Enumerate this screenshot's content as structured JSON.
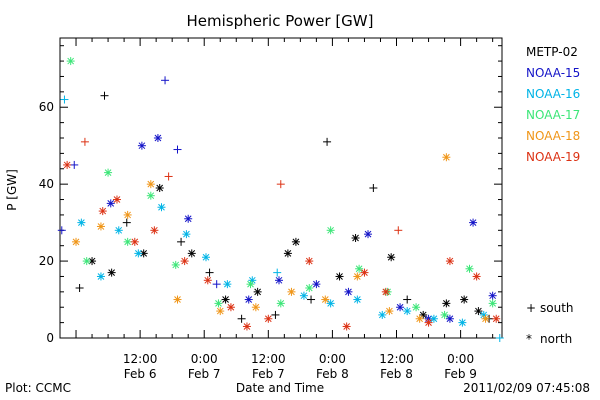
{
  "chart_data": {
    "type": "scatter",
    "title": "Hemispheric Power [GW]",
    "xlabel": "Date and Time",
    "ylabel": "P [GW]",
    "ylim": [
      0,
      78
    ],
    "xlim": [
      "2011-02-05 21:00",
      "2011-02-09 07:45"
    ],
    "y_ticks": [
      0,
      20,
      40,
      60
    ],
    "x_ticks": [
      {
        "time": "2011-02-06 12:00",
        "hour": "12:00",
        "day": "Feb 6"
      },
      {
        "time": "2011-02-07 00:00",
        "hour": "0:00",
        "day": "Feb 7"
      },
      {
        "time": "2011-02-07 12:00",
        "hour": "12:00",
        "day": "Feb 7"
      },
      {
        "time": "2011-02-08 00:00",
        "hour": "0:00",
        "day": "Feb 8"
      },
      {
        "time": "2011-02-08 12:00",
        "hour": "12:00",
        "day": "Feb 8"
      },
      {
        "time": "2011-02-09 00:00",
        "hour": "0:00",
        "day": "Feb 9"
      }
    ],
    "legend_position": "right",
    "marker_legend": {
      "south": "south",
      "north": "north"
    },
    "series": [
      {
        "name": "METP-02",
        "color": "#000000",
        "points": [
          [
            "2011-02-06 00:40",
            13,
            "+"
          ],
          [
            "2011-02-06 03:00",
            20,
            "*"
          ],
          [
            "2011-02-06 05:20",
            63,
            "+"
          ],
          [
            "2011-02-06 06:40",
            17,
            "*"
          ],
          [
            "2011-02-06 09:30",
            30,
            "+"
          ],
          [
            "2011-02-06 12:40",
            22,
            "*"
          ],
          [
            "2011-02-06 15:40",
            39,
            "*"
          ],
          [
            "2011-02-06 19:40",
            25,
            "+"
          ],
          [
            "2011-02-06 21:40",
            22,
            "*"
          ],
          [
            "2011-02-07 01:00",
            17,
            "+"
          ],
          [
            "2011-02-07 04:00",
            10,
            "*"
          ],
          [
            "2011-02-07 07:00",
            5,
            "+"
          ],
          [
            "2011-02-07 10:00",
            12,
            "*"
          ],
          [
            "2011-02-07 13:20",
            6,
            "+"
          ],
          [
            "2011-02-07 15:40",
            22,
            "*"
          ],
          [
            "2011-02-07 17:10",
            25,
            "*"
          ],
          [
            "2011-02-07 20:00",
            10,
            "+"
          ],
          [
            "2011-02-07 23:00",
            51,
            "+"
          ],
          [
            "2011-02-08 01:20",
            16,
            "*"
          ],
          [
            "2011-02-08 04:20",
            26,
            "*"
          ],
          [
            "2011-02-08 07:40",
            39,
            "+"
          ],
          [
            "2011-02-08 11:00",
            21,
            "*"
          ],
          [
            "2011-02-08 14:00",
            10,
            "+"
          ],
          [
            "2011-02-08 17:00",
            6,
            "*"
          ],
          [
            "2011-02-08 21:20",
            9,
            "*"
          ],
          [
            "2011-02-09 00:40",
            10,
            "*"
          ],
          [
            "2011-02-09 03:20",
            7,
            "*"
          ],
          [
            "2011-02-09 05:20",
            5,
            "+"
          ]
        ]
      },
      {
        "name": "NOAA-15",
        "color": "#1414c8",
        "points": [
          [
            "2011-02-05 21:20",
            28,
            "+"
          ],
          [
            "2011-02-05 23:40",
            45,
            "+"
          ],
          [
            "2011-02-06 06:30",
            35,
            "*"
          ],
          [
            "2011-02-06 12:20",
            50,
            "*"
          ],
          [
            "2011-02-06 15:20",
            52,
            "*"
          ],
          [
            "2011-02-06 16:40",
            67,
            "+"
          ],
          [
            "2011-02-06 19:00",
            49,
            "+"
          ],
          [
            "2011-02-06 21:00",
            31,
            "*"
          ],
          [
            "2011-02-07 02:20",
            14,
            "+"
          ],
          [
            "2011-02-07 08:20",
            10,
            "*"
          ],
          [
            "2011-02-07 14:00",
            15,
            "*"
          ],
          [
            "2011-02-07 21:00",
            14,
            "*"
          ],
          [
            "2011-02-08 03:00",
            12,
            "*"
          ],
          [
            "2011-02-08 06:40",
            27,
            "*"
          ],
          [
            "2011-02-08 12:40",
            8,
            "*"
          ],
          [
            "2011-02-08 18:00",
            5,
            "*"
          ],
          [
            "2011-02-08 22:00",
            5,
            "*"
          ],
          [
            "2011-02-09 02:20",
            30,
            "*"
          ],
          [
            "2011-02-09 06:00",
            11,
            "*"
          ]
        ]
      },
      {
        "name": "NOAA-16",
        "color": "#00b4e6",
        "points": [
          [
            "2011-02-05 21:50",
            62,
            "+"
          ],
          [
            "2011-02-06 01:00",
            30,
            "*"
          ],
          [
            "2011-02-06 04:40",
            16,
            "*"
          ],
          [
            "2011-02-06 08:00",
            28,
            "*"
          ],
          [
            "2011-02-06 11:40",
            22,
            "*"
          ],
          [
            "2011-02-06 16:00",
            34,
            "*"
          ],
          [
            "2011-02-06 20:40",
            27,
            "*"
          ],
          [
            "2011-02-07 00:20",
            21,
            "*"
          ],
          [
            "2011-02-07 04:20",
            14,
            "*"
          ],
          [
            "2011-02-07 09:00",
            15,
            "*"
          ],
          [
            "2011-02-07 13:40",
            17,
            "+"
          ],
          [
            "2011-02-07 18:40",
            11,
            "*"
          ],
          [
            "2011-02-07 23:40",
            9,
            "*"
          ],
          [
            "2011-02-08 04:40",
            10,
            "*"
          ],
          [
            "2011-02-08 09:20",
            6,
            "*"
          ],
          [
            "2011-02-08 14:00",
            7,
            "*"
          ],
          [
            "2011-02-08 19:00",
            5,
            "*"
          ],
          [
            "2011-02-09 00:20",
            4,
            "*"
          ],
          [
            "2011-02-09 04:20",
            6,
            "*"
          ],
          [
            "2011-02-09 07:20",
            0,
            "+"
          ]
        ]
      },
      {
        "name": "NOAA-17",
        "color": "#3ce678",
        "points": [
          [
            "2011-02-05 23:00",
            72,
            "*"
          ],
          [
            "2011-02-06 02:00",
            20,
            "*"
          ],
          [
            "2011-02-06 06:00",
            43,
            "*"
          ],
          [
            "2011-02-06 09:40",
            25,
            "*"
          ],
          [
            "2011-02-06 14:00",
            37,
            "*"
          ],
          [
            "2011-02-06 18:40",
            19,
            "*"
          ],
          [
            "2011-02-07 02:40",
            9,
            "*"
          ],
          [
            "2011-02-07 08:40",
            14,
            "*"
          ],
          [
            "2011-02-07 14:20",
            9,
            "*"
          ],
          [
            "2011-02-07 19:40",
            13,
            "*"
          ],
          [
            "2011-02-07 23:40",
            28,
            "*"
          ],
          [
            "2011-02-08 05:00",
            18,
            "*"
          ],
          [
            "2011-02-08 10:20",
            12,
            "*"
          ],
          [
            "2011-02-08 15:40",
            8,
            "*"
          ],
          [
            "2011-02-08 21:00",
            6,
            "*"
          ],
          [
            "2011-02-09 01:40",
            18,
            "*"
          ],
          [
            "2011-02-09 06:00",
            9,
            "*"
          ]
        ]
      },
      {
        "name": "NOAA-18",
        "color": "#f09619",
        "points": [
          [
            "2011-02-06 00:00",
            25,
            "*"
          ],
          [
            "2011-02-06 04:40",
            29,
            "*"
          ],
          [
            "2011-02-06 09:40",
            32,
            "*"
          ],
          [
            "2011-02-06 14:00",
            40,
            "*"
          ],
          [
            "2011-02-06 19:00",
            10,
            "*"
          ],
          [
            "2011-02-07 03:00",
            7,
            "*"
          ],
          [
            "2011-02-07 09:40",
            8,
            "*"
          ],
          [
            "2011-02-07 16:20",
            12,
            "*"
          ],
          [
            "2011-02-07 22:40",
            10,
            "*"
          ],
          [
            "2011-02-08 04:40",
            16,
            "*"
          ],
          [
            "2011-02-08 10:40",
            7,
            "*"
          ],
          [
            "2011-02-08 16:20",
            5,
            "*"
          ],
          [
            "2011-02-08 21:20",
            47,
            "*"
          ],
          [
            "2011-02-09 04:40",
            5,
            "*"
          ]
        ]
      },
      {
        "name": "NOAA-19",
        "color": "#dc3214",
        "points": [
          [
            "2011-02-05 22:20",
            45,
            "*"
          ],
          [
            "2011-02-06 01:40",
            51,
            "+"
          ],
          [
            "2011-02-06 05:00",
            33,
            "*"
          ],
          [
            "2011-02-06 07:40",
            36,
            "*"
          ],
          [
            "2011-02-06 11:00",
            25,
            "*"
          ],
          [
            "2011-02-06 14:40",
            28,
            "*"
          ],
          [
            "2011-02-06 17:20",
            42,
            "+"
          ],
          [
            "2011-02-06 20:20",
            20,
            "*"
          ],
          [
            "2011-02-07 00:40",
            15,
            "*"
          ],
          [
            "2011-02-07 05:00",
            8,
            "*"
          ],
          [
            "2011-02-07 08:00",
            3,
            "*"
          ],
          [
            "2011-02-07 12:00",
            5,
            "*"
          ],
          [
            "2011-02-07 14:20",
            40,
            "+"
          ],
          [
            "2011-02-07 19:40",
            20,
            "*"
          ],
          [
            "2011-02-08 02:40",
            3,
            "*"
          ],
          [
            "2011-02-08 06:00",
            17,
            "*"
          ],
          [
            "2011-02-08 10:00",
            12,
            "*"
          ],
          [
            "2011-02-08 12:20",
            28,
            "+"
          ],
          [
            "2011-02-08 18:00",
            4,
            "*"
          ],
          [
            "2011-02-08 22:00",
            20,
            "*"
          ],
          [
            "2011-02-09 03:00",
            16,
            "*"
          ],
          [
            "2011-02-09 06:40",
            5,
            "*"
          ]
        ]
      }
    ]
  },
  "footer": {
    "plot_credit": "Plot: CCMC",
    "timestamp": "2011/02/09 07:45:08"
  }
}
